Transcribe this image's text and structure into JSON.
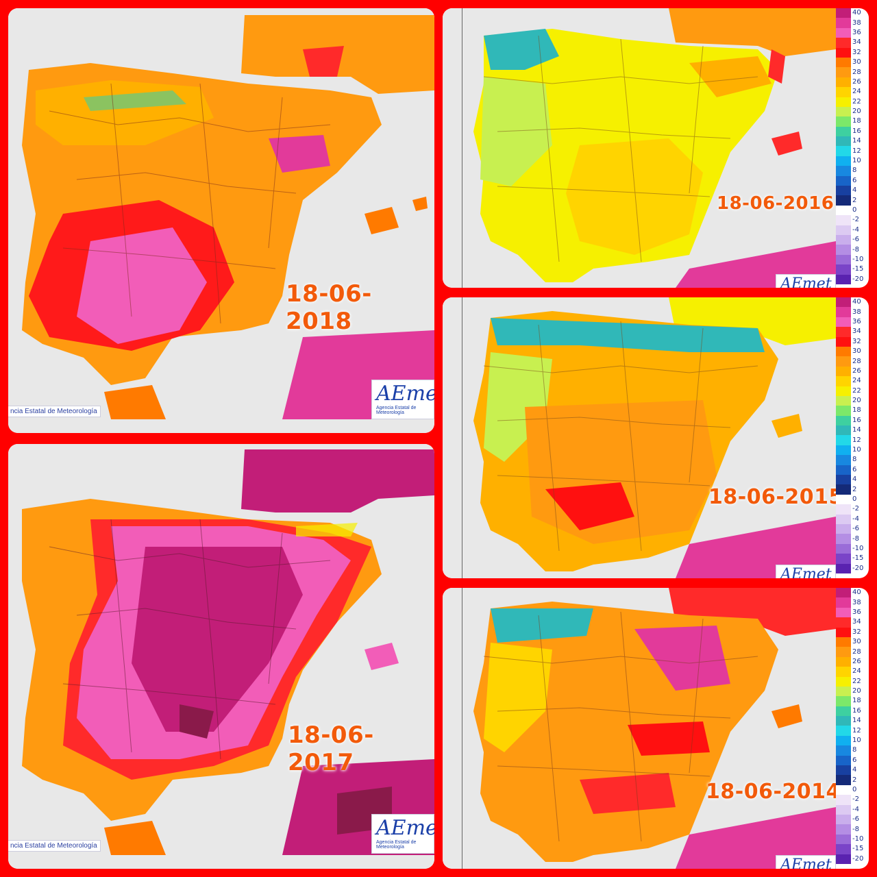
{
  "panels": {
    "p2018": {
      "date": "18-06-2018",
      "agency_strip": "ncia Estatal de Meteorología",
      "logo": "AEmet",
      "logo_sub": "Agencia Estatal de Meteorología"
    },
    "p2017": {
      "date": "18-06-2017",
      "agency_strip": "ncia Estatal de Meteorología",
      "logo": "AEmet",
      "logo_sub": "Agencia Estatal de Meteorología"
    },
    "p2016": {
      "date": "18-06-2016",
      "logo": "AEmet"
    },
    "p2015": {
      "date": "18-06-2015",
      "logo": "AEmet"
    },
    "p2014": {
      "date": "18-06-2014",
      "logo": "AEmet"
    }
  },
  "scale": {
    "labels": [
      "40",
      "38",
      "36",
      "34",
      "32",
      "30",
      "28",
      "26",
      "24",
      "22",
      "20",
      "18",
      "16",
      "14",
      "12",
      "10",
      "8",
      "6",
      "4",
      "2",
      "0",
      "-2",
      "-4",
      "-6",
      "-8",
      "-10",
      "-15",
      "-20"
    ],
    "colors": [
      "#c21e78",
      "#e23a9a",
      "#f25db8",
      "#ff2a2a",
      "#ff1010",
      "#ff7a00",
      "#ff9a10",
      "#ffb000",
      "#ffd400",
      "#f6f000",
      "#c8f050",
      "#7ce86a",
      "#3ed0a0",
      "#30b8b8",
      "#22d8e8",
      "#10b0f0",
      "#1888e0",
      "#1864c8",
      "#1840a0",
      "#142a78",
      "#ffffff",
      "#efe4f8",
      "#dccaf2",
      "#c9aeec",
      "#b48ee4",
      "#9a6cd8",
      "#7a44c8",
      "#5a22b0"
    ]
  },
  "colors": {
    "frame": "#ff0000",
    "sea": "#e8e8e8",
    "date_text": "#f25a0a",
    "logo_blue": "#1a3fa8"
  }
}
